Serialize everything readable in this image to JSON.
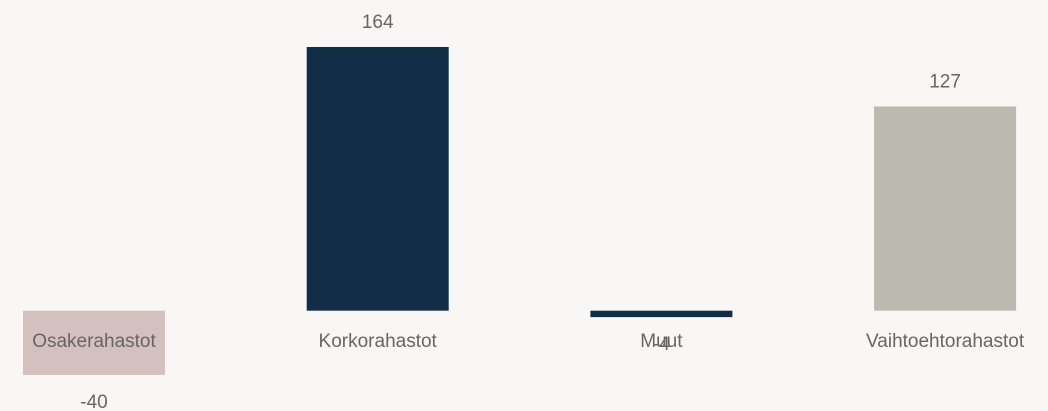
{
  "chart_data": {
    "type": "bar",
    "categories": [
      "Osakerahastot",
      "Korkorahastot",
      "Muut",
      "Vaihtoehtorahastot"
    ],
    "values": [
      -40,
      164,
      -4,
      127
    ],
    "colors": [
      "#d5c0c0",
      "#122d47",
      "#122d47",
      "#bcb9b1"
    ]
  }
}
